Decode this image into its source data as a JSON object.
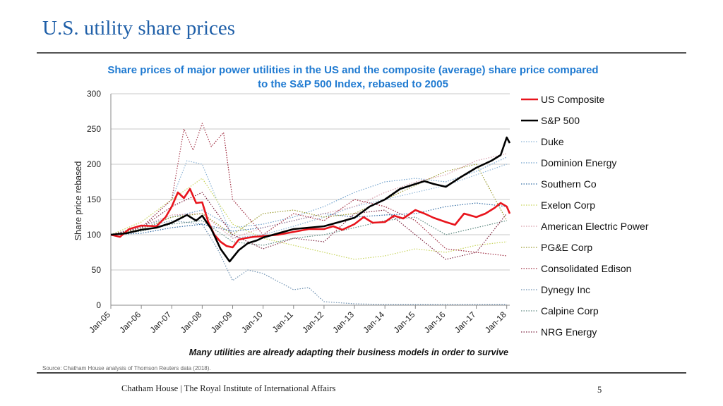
{
  "slide": {
    "title": "U.S. utility share prices",
    "caption": "Many utilities are already adapting their business models in order to survive",
    "source": "Source: Chatham House analysis of Thomson Reuters data (2018).",
    "footer": "Chatham House  |  The Royal Institute of International Affairs",
    "page_number": "5"
  },
  "chart_data": {
    "type": "line",
    "title": "Share prices of major power utilities in the US and the composite (average) share price compared to the S&P 500 Index, rebased to 2005",
    "xlabel": "",
    "ylabel": "Share price rebased",
    "ylim": [
      0,
      300
    ],
    "yticks": [
      0,
      50,
      100,
      150,
      200,
      250,
      300
    ],
    "xlim": [
      2005,
      2018.1
    ],
    "x_ticks": [
      2005,
      2006,
      2007,
      2008,
      2009,
      2010,
      2011,
      2012,
      2013,
      2014,
      2015,
      2016,
      2017,
      2018
    ],
    "x_tick_labels": [
      "Jan-05",
      "Jan-06",
      "Jan-07",
      "Jan-08",
      "Jan-09",
      "Jan-10",
      "Jan-11",
      "Jan-12",
      "Jan-13",
      "Jan-14",
      "Jan-15",
      "Jan-16",
      "Jan-17",
      "Jan-18"
    ],
    "grid": "horizontal",
    "legend_position": "right",
    "series": [
      {
        "name": "US Composite",
        "color": "#e8141c",
        "style": "solid-thick",
        "x": [
          2005,
          2005.3,
          2005.6,
          2006,
          2006.5,
          2006.8,
          2007,
          2007.2,
          2007.4,
          2007.6,
          2007.8,
          2008,
          2008.2,
          2008.4,
          2008.6,
          2008.8,
          2009,
          2009.2,
          2009.4,
          2009.7,
          2010,
          2010.5,
          2011,
          2011.5,
          2012,
          2012.3,
          2012.6,
          2013,
          2013.3,
          2013.6,
          2014,
          2014.3,
          2014.6,
          2015,
          2015.3,
          2015.6,
          2016,
          2016.3,
          2016.6,
          2017,
          2017.3,
          2017.6,
          2017.8,
          2018,
          2018.1
        ],
        "values": [
          100,
          97,
          108,
          113,
          112,
          125,
          140,
          160,
          152,
          165,
          145,
          146,
          118,
          100,
          90,
          84,
          82,
          93,
          95,
          97,
          98,
          100,
          104,
          108,
          108,
          112,
          107,
          115,
          125,
          117,
          118,
          127,
          123,
          135,
          130,
          124,
          118,
          114,
          130,
          125,
          130,
          138,
          145,
          140,
          130
        ]
      },
      {
        "name": "S&P 500",
        "color": "#000000",
        "style": "solid-thick",
        "x": [
          2005,
          2005.5,
          2006,
          2006.5,
          2007,
          2007.5,
          2007.8,
          2008,
          2008.3,
          2008.6,
          2008.9,
          2009.2,
          2009.5,
          2009.8,
          2010,
          2010.5,
          2011,
          2011.5,
          2012,
          2012.5,
          2013,
          2013.5,
          2014,
          2014.5,
          2015,
          2015.3,
          2015.6,
          2016,
          2016.5,
          2017,
          2017.5,
          2017.8,
          2018,
          2018.1
        ],
        "values": [
          100,
          102,
          107,
          110,
          117,
          128,
          120,
          127,
          108,
          80,
          62,
          78,
          88,
          92,
          96,
          102,
          108,
          110,
          112,
          118,
          124,
          140,
          150,
          165,
          172,
          176,
          172,
          168,
          182,
          195,
          205,
          213,
          238,
          230
        ]
      },
      {
        "name": "Duke",
        "color": "#8cb4d6",
        "style": "dotted",
        "x": [
          2005,
          2006,
          2007,
          2007.5,
          2008,
          2009,
          2010,
          2011,
          2012,
          2013,
          2014,
          2015,
          2016,
          2017,
          2018
        ],
        "values": [
          100,
          110,
          150,
          205,
          200,
          95,
          100,
          112,
          125,
          140,
          150,
          160,
          170,
          185,
          200
        ]
      },
      {
        "name": "Dominion Energy",
        "color": "#6fa0cc",
        "style": "dotted",
        "x": [
          2005,
          2006,
          2007,
          2008,
          2009,
          2010,
          2011,
          2012,
          2013,
          2014,
          2015,
          2016,
          2017,
          2018
        ],
        "values": [
          100,
          112,
          125,
          135,
          110,
          115,
          125,
          140,
          160,
          175,
          180,
          175,
          190,
          210
        ]
      },
      {
        "name": "Southern Co",
        "color": "#2f6aa3",
        "style": "dotted",
        "x": [
          2005,
          2006,
          2007,
          2008,
          2009,
          2010,
          2011,
          2012,
          2013,
          2014,
          2015,
          2016,
          2017,
          2018
        ],
        "values": [
          100,
          102,
          110,
          115,
          105,
          110,
          120,
          130,
          125,
          128,
          130,
          140,
          145,
          140
        ]
      },
      {
        "name": "Exelon Corp",
        "color": "#c7d45a",
        "style": "dotted",
        "x": [
          2005,
          2006,
          2007,
          2008,
          2009,
          2010,
          2011,
          2012,
          2013,
          2014,
          2015,
          2016,
          2017,
          2018
        ],
        "values": [
          100,
          118,
          150,
          180,
          115,
          95,
          85,
          75,
          65,
          70,
          80,
          75,
          85,
          90
        ]
      },
      {
        "name": "American Electric Power",
        "color": "#d89aa8",
        "style": "dotted",
        "x": [
          2005,
          2006,
          2007,
          2008,
          2009,
          2010,
          2011,
          2012,
          2013,
          2014,
          2015,
          2016,
          2017,
          2018
        ],
        "values": [
          100,
          112,
          128,
          130,
          95,
          110,
          120,
          130,
          140,
          160,
          175,
          185,
          205,
          215
        ]
      },
      {
        "name": "PG&E Corp",
        "color": "#9a9a2e",
        "style": "dotted",
        "x": [
          2005,
          2006,
          2007,
          2008,
          2009,
          2010,
          2011,
          2012,
          2013,
          2014,
          2015,
          2016,
          2017,
          2018
        ],
        "values": [
          100,
          108,
          125,
          130,
          100,
          130,
          135,
          125,
          130,
          150,
          170,
          190,
          200,
          120
        ]
      },
      {
        "name": "Consolidated Edison",
        "color": "#9e2a3f",
        "style": "dotted",
        "x": [
          2005,
          2006,
          2007,
          2007.4,
          2007.7,
          2008,
          2008.3,
          2008.7,
          2009,
          2010,
          2011,
          2012,
          2013,
          2014,
          2015,
          2016,
          2017,
          2018
        ],
        "values": [
          100,
          110,
          150,
          250,
          220,
          258,
          225,
          245,
          150,
          100,
          130,
          120,
          150,
          140,
          120,
          80,
          75,
          70
        ]
      },
      {
        "name": "Dynegy Inc",
        "color": "#6b8fb0",
        "style": "dotted",
        "x": [
          2005,
          2006,
          2007,
          2008,
          2008.5,
          2009,
          2009.5,
          2010,
          2011,
          2011.5,
          2012,
          2013,
          2014,
          2015,
          2016,
          2017,
          2018
        ],
        "values": [
          100,
          110,
          120,
          115,
          80,
          35,
          50,
          45,
          22,
          25,
          5,
          2,
          1,
          1,
          1,
          1,
          1
        ]
      },
      {
        "name": "Calpine Corp",
        "color": "#5f8a82",
        "style": "dotted",
        "x": [
          2005,
          2006,
          2007,
          2008,
          2009,
          2010,
          2011,
          2012,
          2013,
          2014,
          2015,
          2016,
          2017,
          2018
        ],
        "values": [
          100,
          105,
          115,
          120,
          90,
          85,
          95,
          100,
          110,
          120,
          125,
          100,
          110,
          120
        ]
      },
      {
        "name": "NRG Energy",
        "color": "#7a1f3b",
        "style": "dotted",
        "x": [
          2005,
          2006,
          2007,
          2008,
          2009,
          2010,
          2011,
          2012,
          2013,
          2014,
          2015,
          2016,
          2017,
          2018
        ],
        "values": [
          100,
          110,
          140,
          160,
          100,
          80,
          95,
          90,
          130,
          135,
          100,
          65,
          75,
          130
        ]
      }
    ]
  }
}
